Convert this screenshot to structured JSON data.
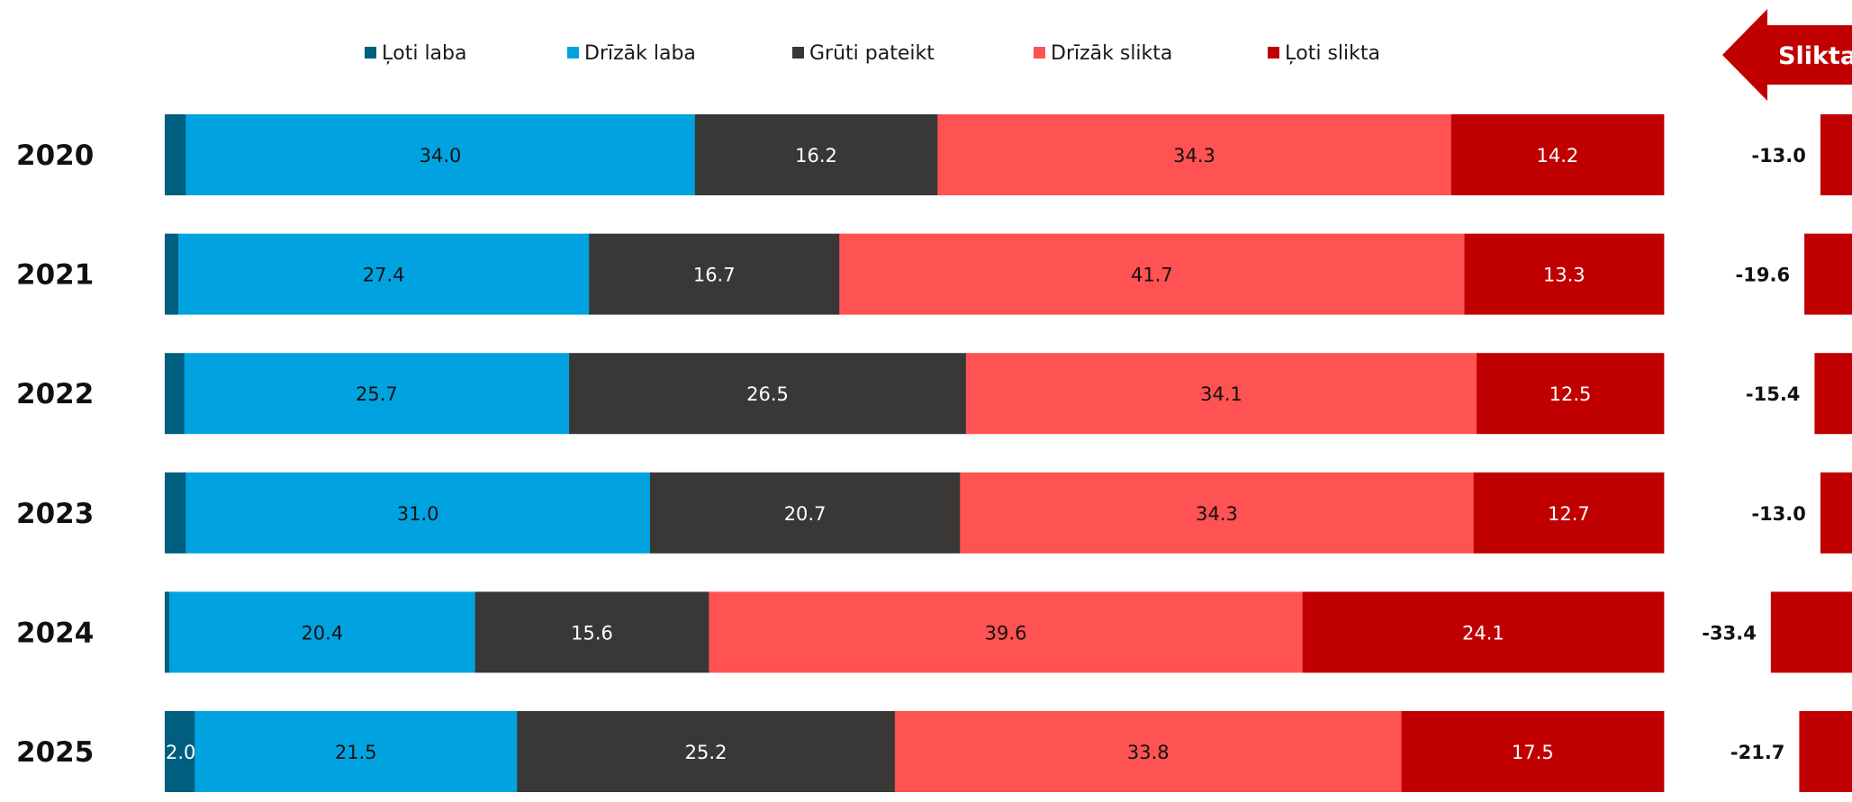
{
  "colors": {
    "Ļoti laba": "#005e7e",
    "Drīzāk laba": "#00a3e0",
    "Grūti pateikt": "#3a3836",
    "Drīzāk slikta": "#ff5252",
    "Ļoti slikta": "#c00000"
  },
  "arrow": {
    "label": "Slikta",
    "color": "#c00000"
  },
  "chart_data": {
    "type": "bar",
    "orientation": "horizontal",
    "stacked": true,
    "normalized_to": 100,
    "title": "",
    "xlabel": "",
    "ylabel": "",
    "categories": [
      "2020",
      "2021",
      "2022",
      "2023",
      "2024",
      "2025"
    ],
    "series": [
      {
        "name": "Ļoti laba",
        "values": [
          1.4,
          0.9,
          1.3,
          1.4,
          0.3,
          2.0
        ]
      },
      {
        "name": "Drīzāk laba",
        "values": [
          34.0,
          27.4,
          25.7,
          31.0,
          20.4,
          21.5
        ]
      },
      {
        "name": "Grūti pateikt",
        "values": [
          16.2,
          16.7,
          26.5,
          20.7,
          15.6,
          25.2
        ]
      },
      {
        "name": "Drīzāk slikta",
        "values": [
          34.3,
          41.7,
          34.1,
          34.3,
          39.6,
          33.8
        ]
      },
      {
        "name": "Ļoti slikta",
        "values": [
          14.2,
          13.3,
          12.5,
          12.7,
          24.1,
          17.5
        ]
      }
    ],
    "net_balance": {
      "values": [
        -13.0,
        -19.6,
        -15.4,
        -13.0,
        -33.4,
        -21.7
      ]
    },
    "legend_position": "top",
    "grid": false
  }
}
